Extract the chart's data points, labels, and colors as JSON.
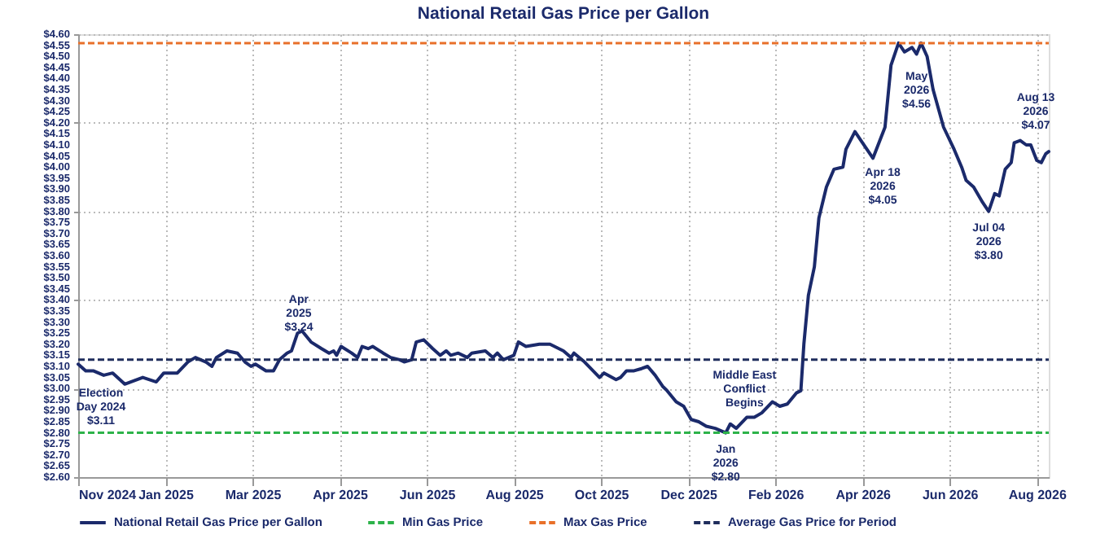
{
  "chart_data": {
    "type": "line",
    "title": "National Retail Gas Price per Gallon",
    "x": [
      "2024-11-05",
      "2024-11-10",
      "2024-11-15",
      "2024-11-22",
      "2024-11-28",
      "2024-12-06",
      "2024-12-18",
      "2024-12-27",
      "2025-01-01",
      "2025-01-10",
      "2025-01-17",
      "2025-01-22",
      "2025-01-29",
      "2025-02-02",
      "2025-02-05",
      "2025-02-12",
      "2025-02-19",
      "2025-02-24",
      "2025-02-28",
      "2025-03-03",
      "2025-03-10",
      "2025-03-15",
      "2025-03-19",
      "2025-03-24",
      "2025-03-27",
      "2025-03-31",
      "2025-04-03",
      "2025-04-09",
      "2025-04-16",
      "2025-04-21",
      "2025-04-24",
      "2025-04-26",
      "2025-04-29",
      "2025-05-06",
      "2025-05-10",
      "2025-05-13",
      "2025-05-17",
      "2025-05-20",
      "2025-05-27",
      "2025-06-01",
      "2025-06-07",
      "2025-06-10",
      "2025-06-15",
      "2025-06-18",
      "2025-06-23",
      "2025-06-29",
      "2025-07-04",
      "2025-07-08",
      "2025-07-11",
      "2025-07-16",
      "2025-07-22",
      "2025-07-25",
      "2025-08-03",
      "2025-08-08",
      "2025-08-11",
      "2025-08-15",
      "2025-08-22",
      "2025-08-25",
      "2025-08-30",
      "2025-09-08",
      "2025-09-15",
      "2025-09-24",
      "2025-09-29",
      "2025-10-01",
      "2025-10-08",
      "2025-10-18",
      "2025-10-21",
      "2025-10-29",
      "2025-11-01",
      "2025-11-05",
      "2025-11-10",
      "2025-11-15",
      "2025-11-19",
      "2025-11-24",
      "2025-11-29",
      "2025-12-02",
      "2025-12-08",
      "2025-12-13",
      "2025-12-18",
      "2025-12-23",
      "2025-12-28",
      "2026-01-03",
      "2026-01-10",
      "2026-01-13",
      "2026-01-17",
      "2026-01-24",
      "2026-01-29",
      "2026-02-03",
      "2026-02-10",
      "2026-02-15",
      "2026-02-20",
      "2026-02-26",
      "2026-03-01",
      "2026-03-03",
      "2026-03-06",
      "2026-03-10",
      "2026-03-13",
      "2026-03-18",
      "2026-03-23",
      "2026-03-29",
      "2026-03-31",
      "2026-04-06",
      "2026-04-10",
      "2026-04-18",
      "2026-04-26",
      "2026-04-30",
      "2026-05-05",
      "2026-05-09",
      "2026-05-14",
      "2026-05-17",
      "2026-05-20",
      "2026-05-24",
      "2026-05-28",
      "2026-06-04",
      "2026-06-11",
      "2026-06-16",
      "2026-06-19",
      "2026-06-24",
      "2026-06-30",
      "2026-07-04",
      "2026-07-08",
      "2026-07-11",
      "2026-07-15",
      "2026-07-19",
      "2026-07-21",
      "2026-07-25",
      "2026-07-29",
      "2026-08-01",
      "2026-08-05",
      "2026-08-08",
      "2026-08-11",
      "2026-08-13"
    ],
    "series": [
      {
        "name": "National Retail Gas Price per Gallon",
        "color": "#1b2a6b",
        "values": [
          3.11,
          3.08,
          3.08,
          3.06,
          3.07,
          3.02,
          3.05,
          3.03,
          3.07,
          3.07,
          3.12,
          3.14,
          3.12,
          3.1,
          3.14,
          3.17,
          3.16,
          3.12,
          3.1,
          3.11,
          3.08,
          3.08,
          3.13,
          3.16,
          3.17,
          3.25,
          3.26,
          3.21,
          3.18,
          3.16,
          3.17,
          3.15,
          3.19,
          3.16,
          3.14,
          3.19,
          3.18,
          3.19,
          3.16,
          3.14,
          3.13,
          3.12,
          3.13,
          3.21,
          3.22,
          3.18,
          3.15,
          3.17,
          3.15,
          3.16,
          3.14,
          3.16,
          3.17,
          3.14,
          3.16,
          3.13,
          3.15,
          3.21,
          3.19,
          3.2,
          3.2,
          3.17,
          3.14,
          3.16,
          3.12,
          3.05,
          3.07,
          3.04,
          3.05,
          3.08,
          3.08,
          3.09,
          3.1,
          3.06,
          3.01,
          2.99,
          2.94,
          2.92,
          2.86,
          2.85,
          2.83,
          2.82,
          2.8,
          2.84,
          2.82,
          2.87,
          2.87,
          2.89,
          2.94,
          2.92,
          2.93,
          2.98,
          2.99,
          3.2,
          3.42,
          3.55,
          3.77,
          3.91,
          3.99,
          4.0,
          4.08,
          4.16,
          4.12,
          4.04,
          4.18,
          4.46,
          4.56,
          4.52,
          4.54,
          4.51,
          4.56,
          4.5,
          4.35,
          4.18,
          4.08,
          4.0,
          3.94,
          3.91,
          3.84,
          3.8,
          3.88,
          3.87,
          3.99,
          4.02,
          4.11,
          4.12,
          4.1,
          4.1,
          4.03,
          4.02,
          4.06,
          4.07
        ]
      }
    ],
    "ref_lines": [
      {
        "axis": "y",
        "value": 2.8,
        "label": "Min Gas Price",
        "color": "#2db34a",
        "line_style": "dashed"
      },
      {
        "axis": "y",
        "value": 4.56,
        "label": "Max Gas Price",
        "color": "#e8702a",
        "line_style": "dashed"
      },
      {
        "axis": "y",
        "value": 3.13,
        "label": "Average Gas Price for Period",
        "color": "#1f2d5c",
        "line_style": "dashed"
      }
    ],
    "annotations": [
      {
        "text": "Election\nDay 2024\n$3.11",
        "x": "2024-11-05",
        "y": 3.11
      },
      {
        "text": "Apr\n2025\n$3.24",
        "x": "2025-04-03",
        "y": 3.26
      },
      {
        "text": "Jan\n2026\n$2.80",
        "x": "2026-01-10",
        "y": 2.8
      },
      {
        "text": "Middle East\nConflict\nBegins",
        "x": "2026-01-29",
        "y": 2.87
      },
      {
        "text": "Apr 18\n2026\n$4.05",
        "x": "2026-04-18",
        "y": 4.04
      },
      {
        "text": "May\n2026\n$4.56",
        "x": "2026-05-17",
        "y": 4.51
      },
      {
        "text": "Jul 04\n2026\n$3.80",
        "x": "2026-07-04",
        "y": 3.8
      },
      {
        "text": "Aug 13\n2026\n$4.07",
        "x": "2026-08-13",
        "y": 4.07
      }
    ],
    "xlim": [
      "2024-11-05",
      "2026-08-13"
    ],
    "xticks": [
      {
        "value": "2024-11-05",
        "label": "Nov 2024"
      },
      {
        "value": "2025-01-02",
        "label": "Jan 2025"
      },
      {
        "value": "2025-03-01",
        "label": "Mar 2025"
      },
      {
        "value": "2025-04-28",
        "label": "Apr 2025"
      },
      {
        "value": "2025-06-25",
        "label": "Jun 2025"
      },
      {
        "value": "2025-08-22",
        "label": "Aug 2025"
      },
      {
        "value": "2025-10-19",
        "label": "Oct 2025"
      },
      {
        "value": "2025-12-16",
        "label": "Dec 2025"
      },
      {
        "value": "2026-02-12",
        "label": "Feb 2026"
      },
      {
        "value": "2026-04-11",
        "label": "Apr 2026"
      },
      {
        "value": "2026-06-08",
        "label": "Jun 2026"
      },
      {
        "value": "2026-08-05",
        "label": "Aug 2026"
      }
    ],
    "ylim": [
      2.6,
      4.6
    ],
    "yticks": [
      {
        "value": 2.6,
        "label": "$2.60"
      },
      {
        "value": 2.65,
        "label": "$2.65"
      },
      {
        "value": 2.7,
        "label": "$2.70"
      },
      {
        "value": 2.75,
        "label": "$2.75"
      },
      {
        "value": 2.8,
        "label": "$2.80"
      },
      {
        "value": 2.85,
        "label": "$2.85"
      },
      {
        "value": 2.9,
        "label": "$2.90"
      },
      {
        "value": 2.95,
        "label": "$2.95"
      },
      {
        "value": 3.0,
        "label": "$3.00"
      },
      {
        "value": 3.05,
        "label": "$3.05"
      },
      {
        "value": 3.1,
        "label": "$3.10"
      },
      {
        "value": 3.15,
        "label": "$3.15"
      },
      {
        "value": 3.2,
        "label": "$3.20"
      },
      {
        "value": 3.25,
        "label": "$3.25"
      },
      {
        "value": 3.3,
        "label": "$3.30"
      },
      {
        "value": 3.35,
        "label": "$3.35"
      },
      {
        "value": 3.4,
        "label": "$3.40"
      },
      {
        "value": 3.45,
        "label": "$3.45"
      },
      {
        "value": 3.5,
        "label": "$3.50"
      },
      {
        "value": 3.55,
        "label": "$3.55"
      },
      {
        "value": 3.6,
        "label": "$3.60"
      },
      {
        "value": 3.65,
        "label": "$3.65"
      },
      {
        "value": 3.7,
        "label": "$3.70"
      },
      {
        "value": 3.75,
        "label": "$3.75"
      },
      {
        "value": 3.8,
        "label": "$3.80"
      },
      {
        "value": 3.85,
        "label": "$3.85"
      },
      {
        "value": 3.9,
        "label": "$3.90"
      },
      {
        "value": 3.95,
        "label": "$3.95"
      },
      {
        "value": 4.0,
        "label": "$4.00"
      },
      {
        "value": 4.05,
        "label": "$4.05"
      },
      {
        "value": 4.1,
        "label": "$4.10"
      },
      {
        "value": 4.15,
        "label": "$4.15"
      },
      {
        "value": 4.2,
        "label": "$4.20"
      },
      {
        "value": 4.25,
        "label": "$4.25"
      },
      {
        "value": 4.3,
        "label": "$4.30"
      },
      {
        "value": 4.35,
        "label": "$4.35"
      },
      {
        "value": 4.4,
        "label": "$4.40"
      },
      {
        "value": 4.45,
        "label": "$4.45"
      },
      {
        "value": 4.5,
        "label": "$4.50"
      },
      {
        "value": 4.55,
        "label": "$4.55"
      },
      {
        "value": 4.6,
        "label": "$4.60"
      }
    ],
    "grid": true,
    "legend": "bottom",
    "marker": "none",
    "line_style": "solid"
  }
}
